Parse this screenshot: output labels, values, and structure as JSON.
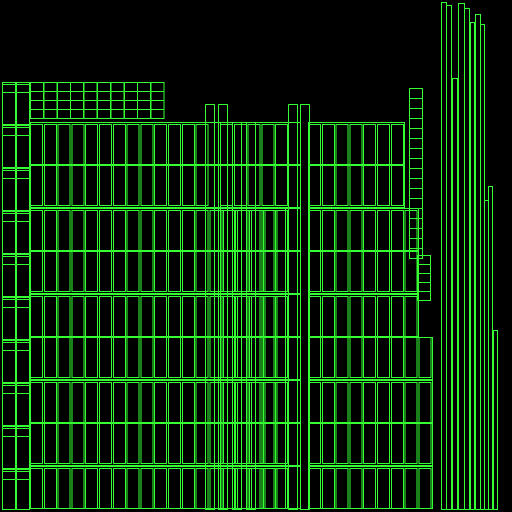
{
  "colors": {
    "background": "#000000",
    "outline": "#33ff33"
  }
}
